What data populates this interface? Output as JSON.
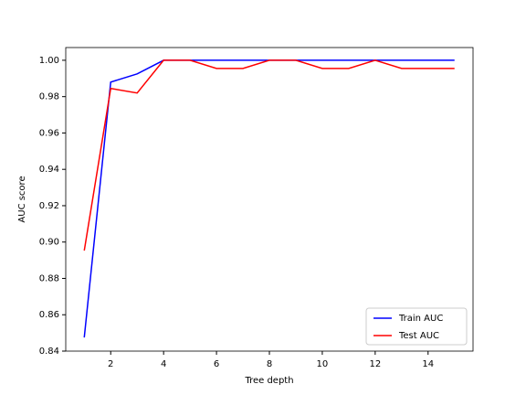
{
  "chart_data": {
    "type": "line",
    "x_label": "Tree depth",
    "y_label": "AUC score",
    "x": [
      1,
      2,
      3,
      4,
      5,
      6,
      7,
      8,
      9,
      10,
      11,
      12,
      13,
      14,
      15
    ],
    "series": [
      {
        "name": "Train AUC",
        "color": "#0000ff",
        "values": [
          0.8475,
          0.988,
          0.9925,
          1.0,
          1.0,
          1.0,
          1.0,
          1.0,
          1.0,
          1.0,
          1.0,
          1.0,
          1.0,
          1.0,
          1.0
        ]
      },
      {
        "name": "Test AUC",
        "color": "#ff0000",
        "values": [
          0.8953,
          0.9845,
          0.982,
          1.0,
          1.0,
          0.9955,
          0.9955,
          1.0,
          1.0,
          0.9955,
          0.9955,
          1.0,
          0.9955,
          0.9955,
          0.9955
        ]
      }
    ],
    "xlim": [
      0.3,
      15.7
    ],
    "ylim": [
      0.84,
      1.007
    ],
    "xticks": [
      2,
      4,
      6,
      8,
      10,
      12,
      14
    ],
    "yticks": [
      {
        "value": 0.84,
        "label": "0.84"
      },
      {
        "value": 0.86,
        "label": "0.86"
      },
      {
        "value": 0.88,
        "label": "0.88"
      },
      {
        "value": 0.9,
        "label": "0.90"
      },
      {
        "value": 0.92,
        "label": "0.92"
      },
      {
        "value": 0.94,
        "label": "0.94"
      },
      {
        "value": 0.96,
        "label": "0.96"
      },
      {
        "value": 0.98,
        "label": "0.98"
      },
      {
        "value": 1.0,
        "label": "1.00"
      }
    ],
    "legend": "lower right"
  }
}
